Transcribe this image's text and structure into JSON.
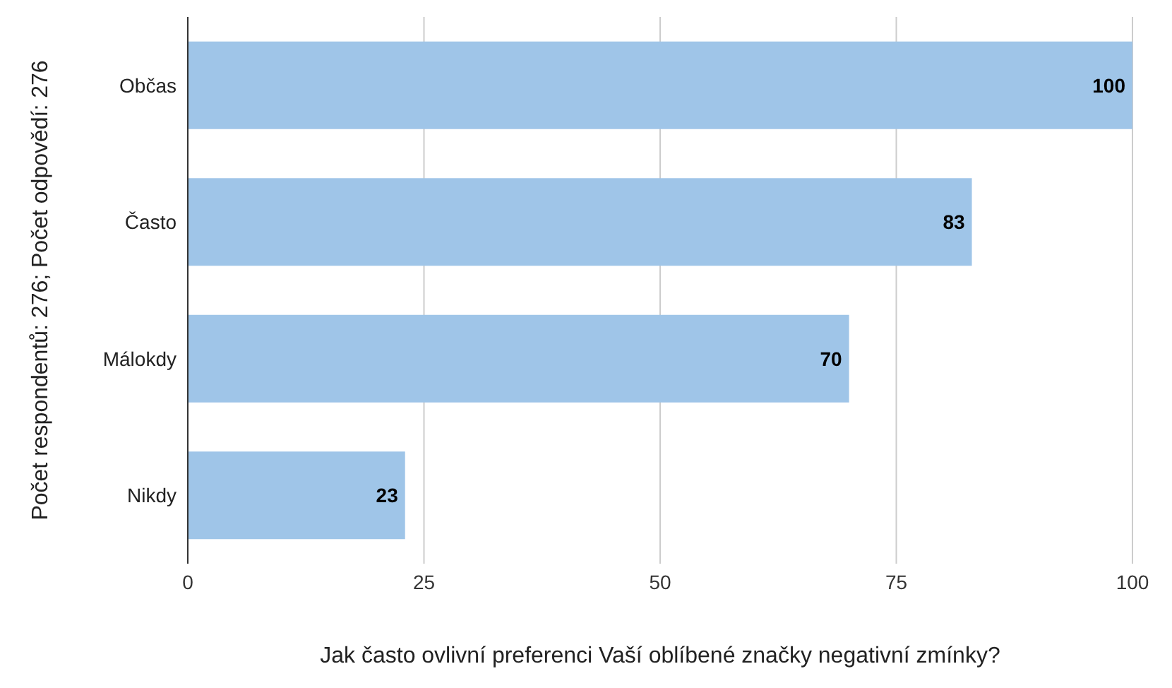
{
  "chart_data": {
    "type": "bar",
    "orientation": "horizontal",
    "categories": [
      "Občas",
      "Často",
      "Málokdy",
      "Nikdy"
    ],
    "values": [
      100,
      83,
      70,
      23
    ],
    "color": "#9fc5e8",
    "xlim": [
      0,
      100
    ],
    "xticks": [
      0,
      25,
      50,
      75,
      100
    ],
    "grid": "x",
    "data_labels": true,
    "xlabel": "Jak často ovlivní preferenci Vaší oblíbené značky negativní zmínky?",
    "ylabel": "Počet respondentů: 276; Počet odpovědí: 276"
  }
}
